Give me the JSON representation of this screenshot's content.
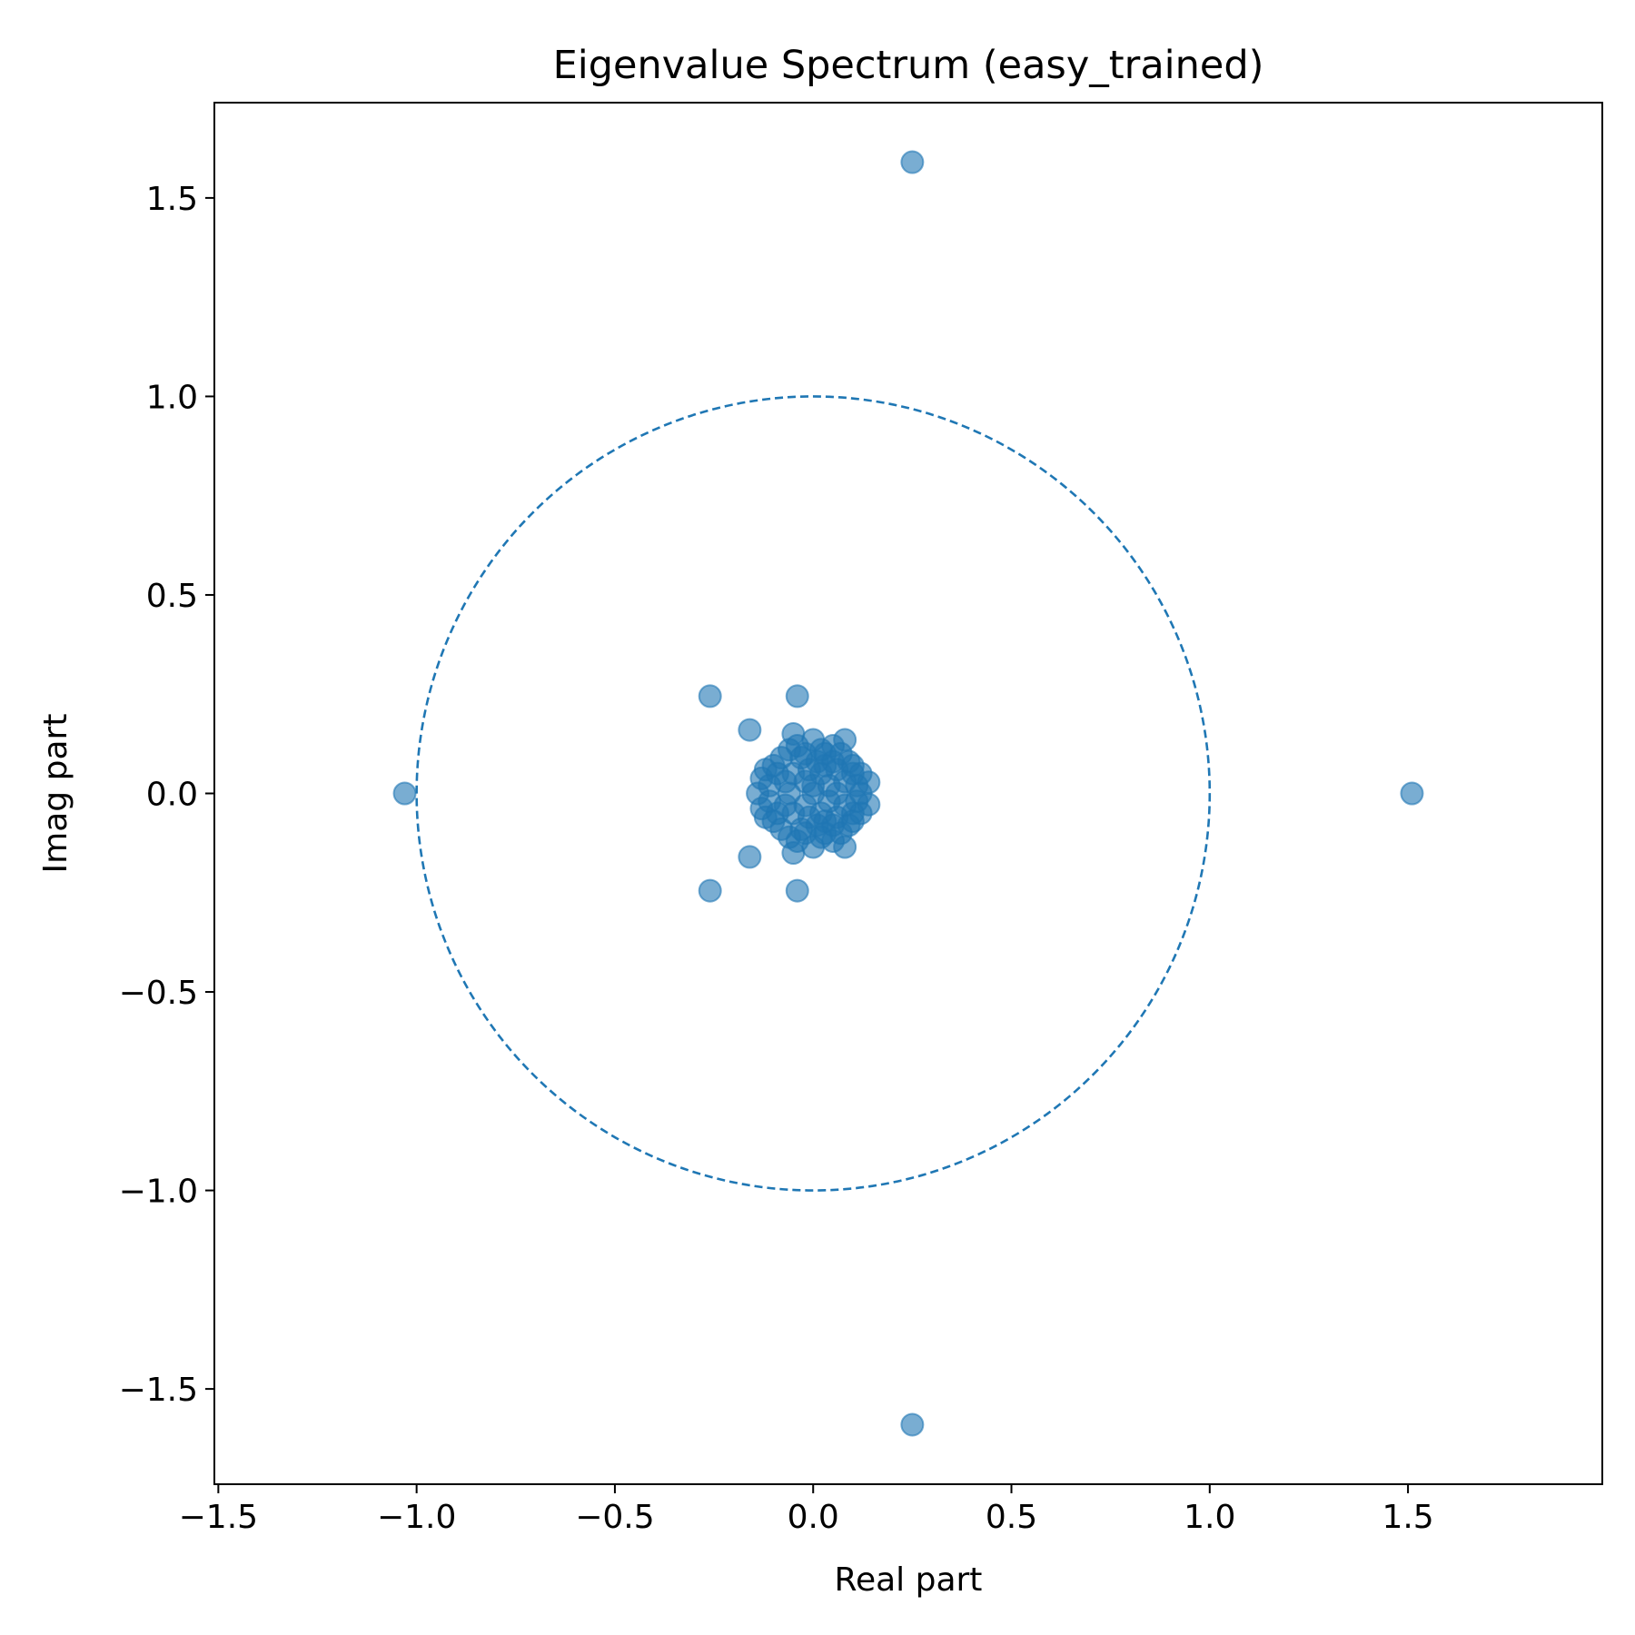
{
  "chart_data": {
    "type": "scatter",
    "title": "Eigenvalue Spectrum (easy_trained)",
    "xlabel": "Real part",
    "ylabel": "Imag part",
    "xlim": [
      -1.51,
      1.99
    ],
    "ylim": [
      -1.74,
      1.74
    ],
    "xticks": [
      -1.5,
      -1.0,
      -0.5,
      0.0,
      0.5,
      1.0,
      1.5
    ],
    "xtick_labels": [
      "−1.5",
      "−1.0",
      "−0.5",
      "0.0",
      "0.5",
      "1.0",
      "1.5"
    ],
    "yticks": [
      -1.5,
      -1.0,
      -0.5,
      0.0,
      0.5,
      1.0,
      1.5
    ],
    "ytick_labels": [
      "−1.5",
      "−1.0",
      "−0.5",
      "0.0",
      "0.5",
      "1.0",
      "1.5"
    ],
    "grid": false,
    "legend": "none",
    "marker_color": "#1f77b4",
    "marker_alpha": 0.6,
    "unit_circle": {
      "radius": 1.0,
      "style": "dashed",
      "color": "#1f77b4"
    },
    "points": [
      [
        1.51,
        0.0
      ],
      [
        -1.03,
        0.0
      ],
      [
        0.25,
        1.59
      ],
      [
        0.25,
        -1.59
      ],
      [
        -0.26,
        0.245
      ],
      [
        -0.26,
        -0.245
      ],
      [
        -0.04,
        0.245
      ],
      [
        -0.04,
        -0.245
      ],
      [
        -0.16,
        0.16
      ],
      [
        -0.16,
        -0.16
      ],
      [
        -0.05,
        0.15
      ],
      [
        -0.05,
        -0.15
      ],
      [
        0.08,
        0.135
      ],
      [
        0.08,
        -0.135
      ],
      [
        0.14,
        0.028
      ],
      [
        0.14,
        -0.028
      ],
      [
        -0.13,
        0.038
      ],
      [
        -0.13,
        -0.038
      ],
      [
        -0.14,
        0.0
      ],
      [
        0.12,
        0.0
      ],
      [
        0.0,
        0.135
      ],
      [
        0.0,
        -0.135
      ],
      [
        0.05,
        0.12
      ],
      [
        0.05,
        -0.12
      ],
      [
        -0.06,
        0.11
      ],
      [
        -0.06,
        -0.11
      ],
      [
        0.09,
        0.08
      ],
      [
        0.09,
        -0.08
      ],
      [
        -0.1,
        0.07
      ],
      [
        -0.1,
        -0.07
      ],
      [
        0.1,
        0.05
      ],
      [
        0.1,
        -0.05
      ],
      [
        -0.08,
        0.09
      ],
      [
        -0.08,
        -0.09
      ],
      [
        0.03,
        0.1
      ],
      [
        0.03,
        -0.1
      ],
      [
        -0.03,
        0.09
      ],
      [
        -0.03,
        -0.09
      ],
      [
        0.06,
        0.06
      ],
      [
        0.06,
        -0.06
      ],
      [
        -0.05,
        0.05
      ],
      [
        -0.05,
        -0.05
      ],
      [
        0.02,
        0.05
      ],
      [
        0.02,
        -0.05
      ],
      [
        -0.02,
        0.03
      ],
      [
        -0.02,
        -0.03
      ],
      [
        0.04,
        0.02
      ],
      [
        0.04,
        -0.02
      ],
      [
        0.0,
        0.0
      ],
      [
        0.01,
        0.08
      ],
      [
        0.01,
        -0.08
      ],
      [
        -0.11,
        0.02
      ],
      [
        -0.11,
        -0.02
      ],
      [
        0.11,
        0.02
      ],
      [
        0.11,
        -0.02
      ],
      [
        0.07,
        0.1
      ],
      [
        0.07,
        -0.1
      ],
      [
        -0.07,
        0.03
      ],
      [
        -0.07,
        -0.03
      ],
      [
        0.08,
        0.03
      ],
      [
        0.08,
        -0.03
      ],
      [
        -0.09,
        0.05
      ],
      [
        -0.09,
        -0.05
      ],
      [
        0.05,
        0.08
      ],
      [
        0.05,
        -0.08
      ],
      [
        -0.04,
        0.12
      ],
      [
        -0.04,
        -0.12
      ],
      [
        0.03,
        0.07
      ],
      [
        0.03,
        -0.07
      ],
      [
        -0.01,
        0.06
      ],
      [
        -0.01,
        -0.06
      ],
      [
        0.0,
        0.02
      ],
      [
        0.06,
        0.0
      ],
      [
        -0.06,
        0.0
      ],
      [
        0.02,
        0.11
      ],
      [
        0.02,
        -0.11
      ],
      [
        -0.02,
        0.1
      ],
      [
        -0.02,
        -0.1
      ],
      [
        0.1,
        0.07
      ],
      [
        0.1,
        -0.07
      ],
      [
        -0.12,
        0.06
      ],
      [
        -0.12,
        -0.06
      ],
      [
        0.12,
        0.05
      ],
      [
        0.12,
        -0.05
      ]
    ]
  }
}
